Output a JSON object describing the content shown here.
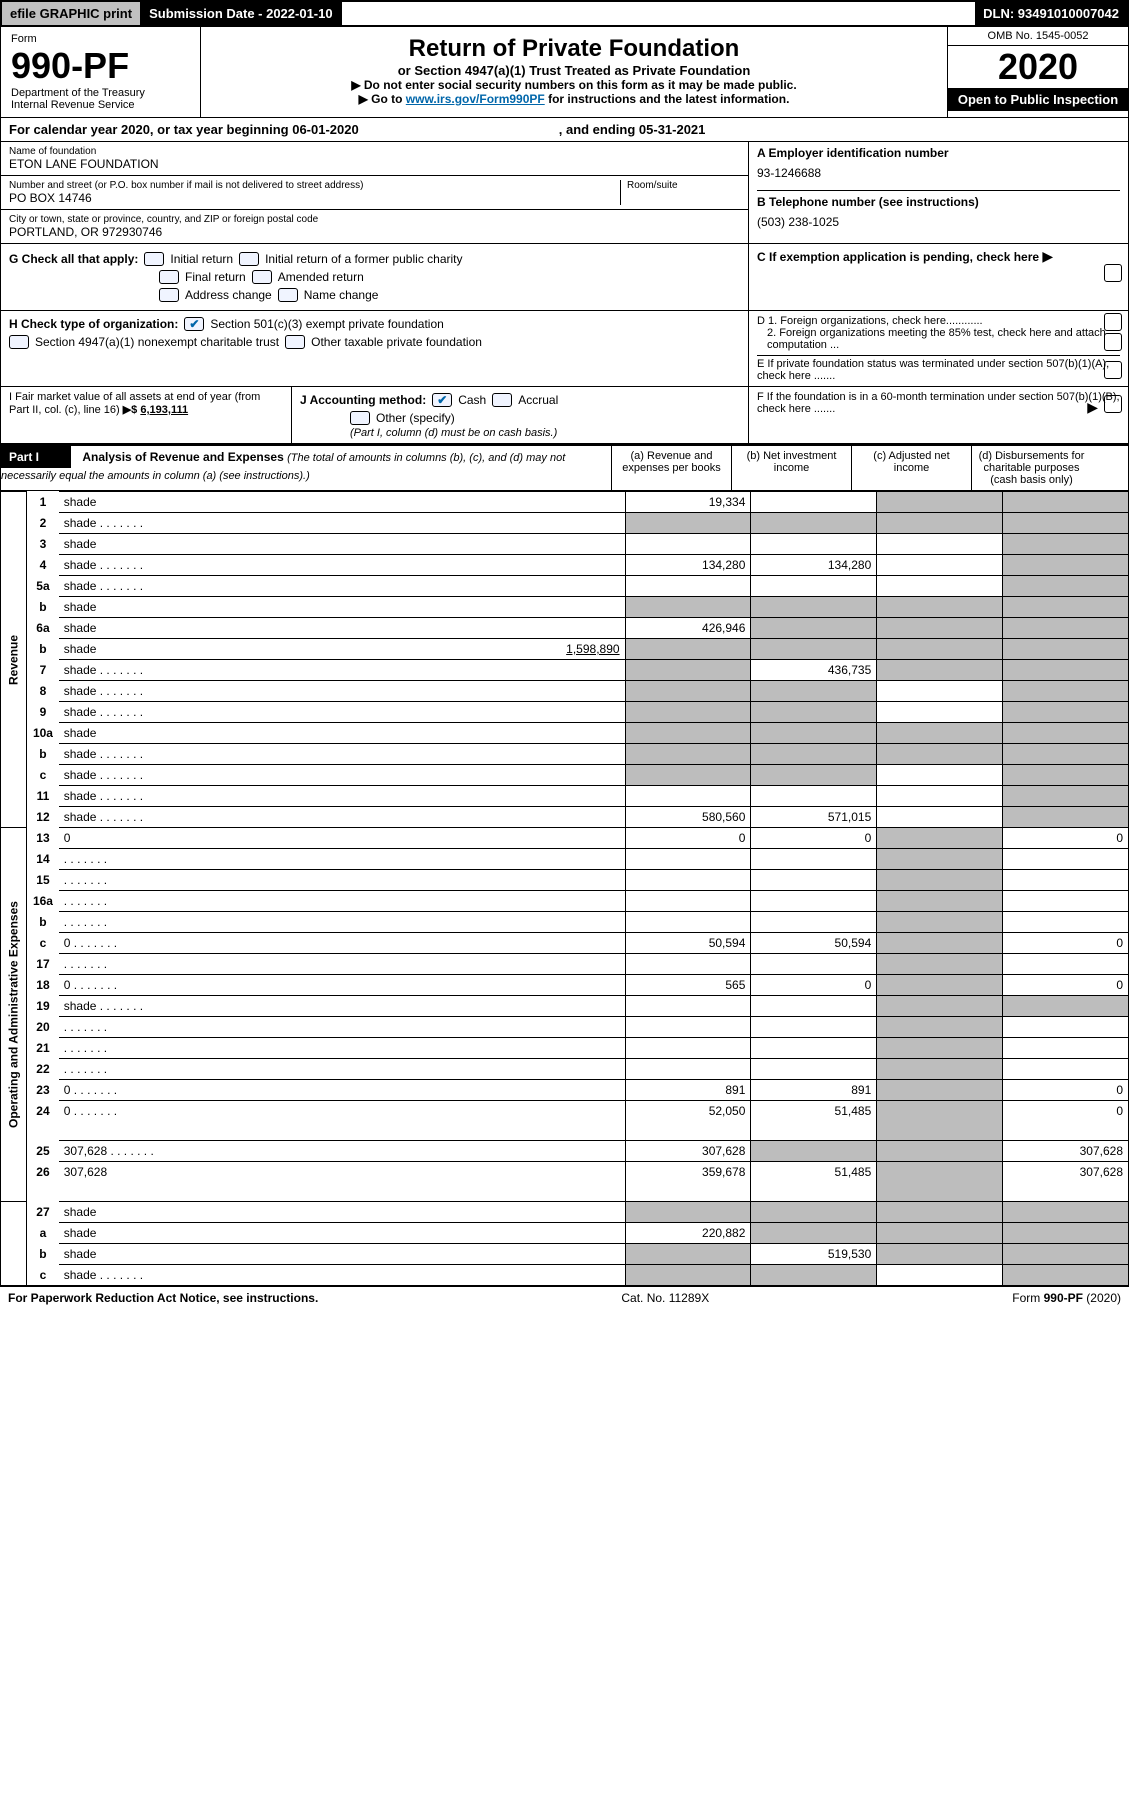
{
  "topbar": {
    "efile": "efile GRAPHIC print",
    "submission": "Submission Date - 2022-01-10",
    "dln": "DLN: 93491010007042"
  },
  "header": {
    "form_label": "Form",
    "form_num": "990-PF",
    "dept": "Department of the Treasury",
    "irs": "Internal Revenue Service",
    "title": "Return of Private Foundation",
    "subtitle": "or Section 4947(a)(1) Trust Treated as Private Foundation",
    "inst1": "▶ Do not enter social security numbers on this form as it may be made public.",
    "inst2_pre": "▶ Go to ",
    "inst2_link": "www.irs.gov/Form990PF",
    "inst2_post": " for instructions and the latest information.",
    "omb": "OMB No. 1545-0052",
    "year": "2020",
    "open": "Open to Public Inspection"
  },
  "calendar": {
    "text": "For calendar year 2020, or tax year beginning 06-01-2020",
    "middle": ", and ending 05-31-2021"
  },
  "infoA": {
    "name_label": "Name of foundation",
    "name": "ETON LANE FOUNDATION",
    "addr_label": "Number and street (or P.O. box number if mail is not delivered to street address)",
    "addr": "PO BOX 14746",
    "room_label": "Room/suite",
    "city_label": "City or town, state or province, country, and ZIP or foreign postal code",
    "city": "PORTLAND, OR  972930746"
  },
  "infoB": {
    "a_label": "A Employer identification number",
    "a_val": "93-1246688",
    "b_label": "B Telephone number (see instructions)",
    "b_val": "(503) 238-1025",
    "c_label": "C If exemption application is pending, check here",
    "d1": "D 1. Foreign organizations, check here............",
    "d2": "2. Foreign organizations meeting the 85% test, check here and attach computation ...",
    "e": "E  If private foundation status was terminated under section 507(b)(1)(A), check here .......",
    "f": "F  If the foundation is in a 60-month termination under section 507(b)(1)(B), check here .......",
    "g": "G Check all that apply:",
    "g_opts": [
      "Initial return",
      "Initial return of a former public charity",
      "Final return",
      "Amended return",
      "Address change",
      "Name change"
    ],
    "h": "H Check type of organization:",
    "h1": "Section 501(c)(3) exempt private foundation",
    "h2": "Section 4947(a)(1) nonexempt charitable trust",
    "h3": "Other taxable private foundation",
    "i": "I Fair market value of all assets at end of year (from Part II, col. (c), line 16)",
    "i_val": "6,193,111",
    "j": "J Accounting method:",
    "j_opts": [
      "Cash",
      "Accrual",
      "Other (specify)"
    ],
    "j_note": "(Part I, column (d) must be on cash basis.)"
  },
  "part1": {
    "label": "Part I",
    "title": "Analysis of Revenue and Expenses",
    "title_note": "(The total of amounts in columns (b), (c), and (d) may not necessarily equal the amounts in column (a) (see instructions).)",
    "col_a": "(a) Revenue and expenses per books",
    "col_b": "(b) Net investment income",
    "col_c": "(c) Adjusted net income",
    "col_d": "(d) Disbursements for charitable purposes (cash basis only)"
  },
  "side_labels": {
    "revenue": "Revenue",
    "expenses": "Operating and Administrative Expenses"
  },
  "lines": [
    {
      "n": "1",
      "d": "shade",
      "a": "19,334",
      "b": "",
      "c": "shade"
    },
    {
      "n": "2",
      "d": "shade",
      "a": "shade",
      "b": "shade",
      "c": "shade",
      "dots": true
    },
    {
      "n": "3",
      "d": "shade",
      "a": "",
      "b": "",
      "c": ""
    },
    {
      "n": "4",
      "d": "shade",
      "a": "134,280",
      "b": "134,280",
      "c": "",
      "dots": true
    },
    {
      "n": "5a",
      "d": "shade",
      "a": "",
      "b": "",
      "c": "",
      "dots": true
    },
    {
      "n": "b",
      "d": "shade",
      "a": "shade",
      "b": "shade",
      "c": "shade",
      "under": true
    },
    {
      "n": "6a",
      "d": "shade",
      "a": "426,946",
      "b": "shade",
      "c": "shade"
    },
    {
      "n": "b",
      "d": "shade",
      "v": "1,598,890",
      "a": "shade",
      "b": "shade",
      "c": "shade",
      "under": true
    },
    {
      "n": "7",
      "d": "shade",
      "a": "shade",
      "b": "436,735",
      "c": "shade",
      "dots": true
    },
    {
      "n": "8",
      "d": "shade",
      "a": "shade",
      "b": "shade",
      "c": "",
      "dots": true
    },
    {
      "n": "9",
      "d": "shade",
      "a": "shade",
      "b": "shade",
      "c": "",
      "dots": true
    },
    {
      "n": "10a",
      "d": "shade",
      "a": "shade",
      "b": "shade",
      "c": "shade",
      "under": true
    },
    {
      "n": "b",
      "d": "shade",
      "a": "shade",
      "b": "shade",
      "c": "shade",
      "under": true,
      "dots": true
    },
    {
      "n": "c",
      "d": "shade",
      "a": "shade",
      "b": "shade",
      "c": "",
      "dots": true
    },
    {
      "n": "11",
      "d": "shade",
      "a": "",
      "b": "",
      "c": "",
      "dots": true
    },
    {
      "n": "12",
      "d": "shade",
      "a": "580,560",
      "b": "571,015",
      "c": "",
      "dots": true
    }
  ],
  "lines2": [
    {
      "n": "13",
      "d": "0",
      "a": "0",
      "b": "0",
      "c": "shade"
    },
    {
      "n": "14",
      "d": "",
      "a": "",
      "b": "",
      "c": "shade",
      "dots": true
    },
    {
      "n": "15",
      "d": "",
      "a": "",
      "b": "",
      "c": "shade",
      "dots": true
    },
    {
      "n": "16a",
      "d": "",
      "a": "",
      "b": "",
      "c": "shade",
      "dots": true
    },
    {
      "n": "b",
      "d": "",
      "a": "",
      "b": "",
      "c": "shade",
      "dots": true
    },
    {
      "n": "c",
      "d": "0",
      "a": "50,594",
      "b": "50,594",
      "c": "shade",
      "dots": true
    },
    {
      "n": "17",
      "d": "",
      "a": "",
      "b": "",
      "c": "shade",
      "dots": true
    },
    {
      "n": "18",
      "d": "0",
      "a": "565",
      "b": "0",
      "c": "shade",
      "dots": true
    },
    {
      "n": "19",
      "d": "shade",
      "a": "",
      "b": "",
      "c": "shade",
      "dots": true
    },
    {
      "n": "20",
      "d": "",
      "a": "",
      "b": "",
      "c": "shade",
      "dots": true
    },
    {
      "n": "21",
      "d": "",
      "a": "",
      "b": "",
      "c": "shade",
      "dots": true
    },
    {
      "n": "22",
      "d": "",
      "a": "",
      "b": "",
      "c": "shade",
      "dots": true
    },
    {
      "n": "23",
      "d": "0",
      "a": "891",
      "b": "891",
      "c": "shade",
      "dots": true
    },
    {
      "n": "24",
      "d": "0",
      "a": "52,050",
      "b": "51,485",
      "c": "shade",
      "dots": true,
      "tall": true
    },
    {
      "n": "25",
      "d": "307,628",
      "a": "307,628",
      "b": "shade",
      "c": "shade",
      "dots": true
    },
    {
      "n": "26",
      "d": "307,628",
      "a": "359,678",
      "b": "51,485",
      "c": "shade",
      "tall": true
    }
  ],
  "lines3": [
    {
      "n": "27",
      "d": "shade",
      "a": "shade",
      "b": "shade",
      "c": "shade"
    },
    {
      "n": "a",
      "d": "shade",
      "a": "220,882",
      "b": "shade",
      "c": "shade"
    },
    {
      "n": "b",
      "d": "shade",
      "a": "shade",
      "b": "519,530",
      "c": "shade"
    },
    {
      "n": "c",
      "d": "shade",
      "a": "shade",
      "b": "shade",
      "c": "",
      "dots": true
    }
  ],
  "footer": {
    "left": "For Paperwork Reduction Act Notice, see instructions.",
    "mid": "Cat. No. 11289X",
    "right": "Form 990-PF (2020)"
  },
  "colors": {
    "shade": "#bdbdbd",
    "link": "#0066aa"
  }
}
